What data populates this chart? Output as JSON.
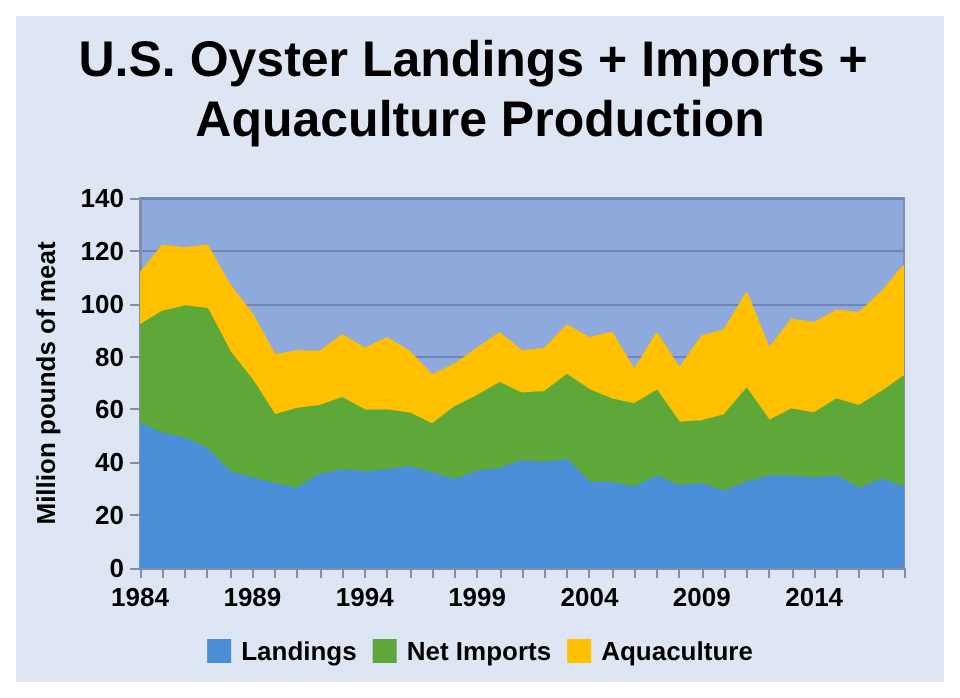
{
  "chart_data": {
    "type": "area",
    "title": "U.S. Oyster Landings + Imports + Aquaculture Production",
    "ylabel": "Million pounds of meat",
    "stacked": true,
    "x": [
      1984,
      1985,
      1986,
      1987,
      1988,
      1989,
      1990,
      1991,
      1992,
      1993,
      1994,
      1995,
      1996,
      1997,
      1998,
      1999,
      2000,
      2001,
      2002,
      2003,
      2004,
      2005,
      2006,
      2007,
      2008,
      2009,
      2010,
      2011,
      2012,
      2013,
      2014,
      2015,
      2016,
      2017,
      2018
    ],
    "series": [
      {
        "name": "Landings",
        "color": "#4a8fd8",
        "values": [
          54.5,
          50.8,
          49,
          45,
          36.3,
          34,
          31.7,
          30,
          35.4,
          37,
          36.3,
          37,
          38.2,
          35.9,
          33.3,
          36.5,
          37.5,
          40.5,
          39.8,
          41,
          32.4,
          32.2,
          30.5,
          34.7,
          31,
          31.7,
          28.9,
          32.4,
          34.7,
          34.7,
          34,
          34.7,
          30,
          33.5,
          30.5
        ]
      },
      {
        "name": "Net Imports",
        "color": "#5ea83a",
        "values": [
          37.3,
          46.2,
          50,
          53,
          45.5,
          37,
          26.1,
          30.3,
          25.9,
          27.3,
          23.3,
          22.6,
          20.3,
          18.4,
          27.5,
          28.5,
          32.5,
          25.5,
          26.8,
          32,
          34.9,
          31.6,
          31.5,
          32.3,
          24,
          23.8,
          28.9,
          35.4,
          21,
          25.3,
          24.5,
          29.1,
          31.3,
          33.1,
          42
        ]
      },
      {
        "name": "Aquaculture",
        "color": "#ffc000",
        "values": [
          19.6,
          25,
          22,
          24,
          25.2,
          25,
          22.8,
          21.7,
          20.5,
          23.7,
          23.4,
          27.4,
          23.3,
          18.6,
          16.2,
          18,
          18.8,
          16,
          16.4,
          18.8,
          19.7,
          25.2,
          12.8,
          21.8,
          20.5,
          32.1,
          32.2,
          36.2,
          27.3,
          34,
          34.2,
          33.6,
          35.2,
          37.8,
          41.9
        ]
      }
    ],
    "xlim": [
      1984,
      2018
    ],
    "xticks": [
      1984,
      1989,
      1994,
      1999,
      2004,
      2009,
      2014
    ],
    "ylim": [
      0,
      140
    ],
    "yticks": [
      0,
      20,
      40,
      60,
      80,
      100,
      120,
      140
    ],
    "grid": "y",
    "legend": "bottom"
  }
}
